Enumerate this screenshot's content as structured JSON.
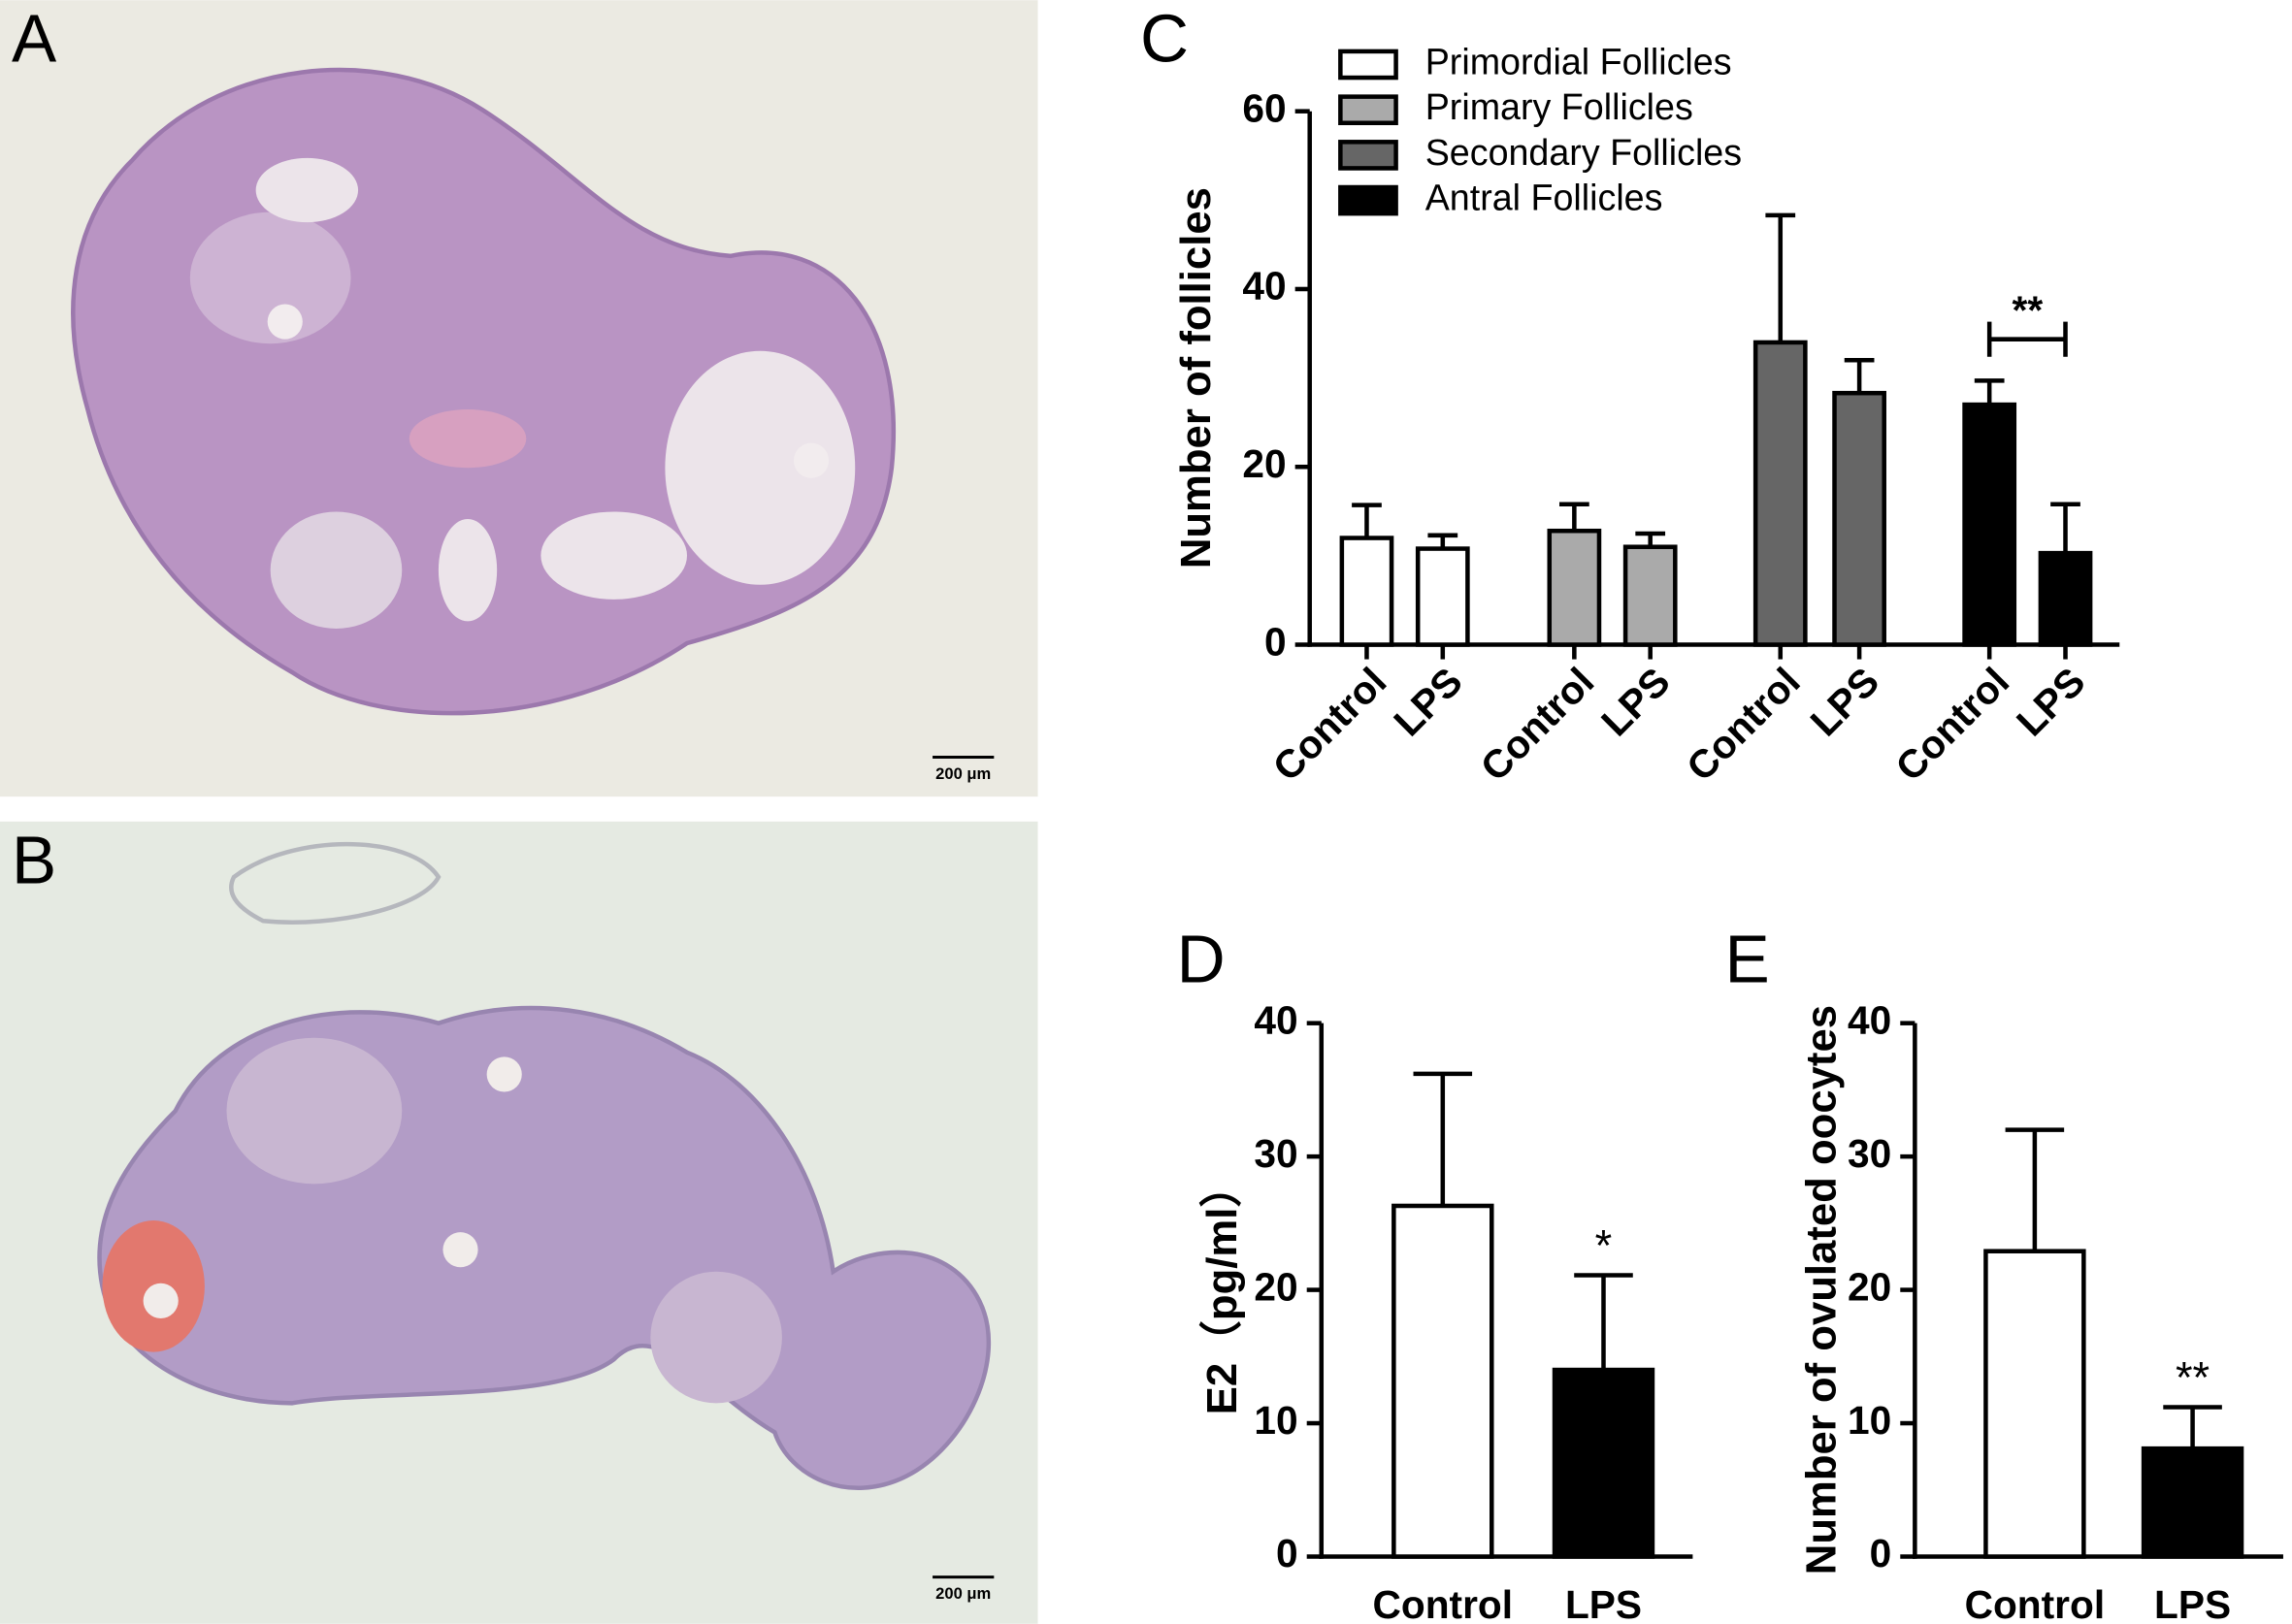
{
  "panels": [
    {
      "label": "A",
      "scale_bar": "200 μm"
    },
    {
      "label": "B",
      "scale_bar": "200 μm"
    }
  ],
  "chart_data": [
    {
      "type": "bar",
      "panel_label": "C",
      "y_label": "Number of follicles",
      "categories": [
        "Control",
        "LPS",
        "Control",
        "LPS",
        "Control",
        "LPS",
        "Control",
        "LPS"
      ],
      "series": [
        {
          "name": "Primordial Follicles",
          "color": "#ffffff",
          "values": [
            12,
            10.8,
            null,
            null,
            null,
            null,
            null,
            null
          ],
          "errors": [
            3.7,
            1.5,
            null,
            null,
            null,
            null,
            null,
            null
          ]
        },
        {
          "name": "Primary Follicles",
          "color": "#aaaaaa",
          "values": [
            null,
            null,
            12.8,
            11,
            null,
            null,
            null,
            null
          ],
          "errors": [
            null,
            null,
            3,
            1.5,
            null,
            null,
            null,
            null
          ]
        },
        {
          "name": "Secondary Follicles",
          "color": "#666666",
          "values": [
            null,
            null,
            null,
            null,
            34,
            28.3,
            null,
            null
          ],
          "errors": [
            null,
            null,
            null,
            null,
            14.3,
            3.7,
            null,
            null
          ]
        },
        {
          "name": "Antral Follicles",
          "color": "#000000",
          "values": [
            null,
            null,
            null,
            null,
            null,
            null,
            27,
            10.3
          ],
          "errors": [
            null,
            null,
            null,
            null,
            null,
            null,
            2.7,
            5.5
          ]
        }
      ],
      "ylim": [
        0,
        60
      ],
      "yticks": [
        0,
        20,
        40,
        60
      ],
      "annotations": [
        "**"
      ]
    },
    {
      "type": "bar",
      "panel_label": "D",
      "y_label": "E2（pg/ml）",
      "categories": [
        "Control",
        "LPS"
      ],
      "values": [
        26.3,
        14
      ],
      "errors": [
        9.9,
        7.1
      ],
      "colors": [
        "#ffffff",
        "#000000"
      ],
      "ylim": [
        0,
        40
      ],
      "yticks": [
        0,
        10,
        20,
        30,
        40
      ],
      "annotations": [
        "*"
      ]
    },
    {
      "type": "bar",
      "panel_label": "E",
      "y_label": "Number of ovulated oocytes",
      "categories": [
        "Control",
        "LPS"
      ],
      "values": [
        22.9,
        8.1
      ],
      "errors": [
        9.1,
        3.1
      ],
      "colors": [
        "#ffffff",
        "#000000"
      ],
      "ylim": [
        0,
        40
      ],
      "yticks": [
        0,
        10,
        20,
        30,
        40
      ],
      "annotations": [
        "**"
      ]
    }
  ]
}
